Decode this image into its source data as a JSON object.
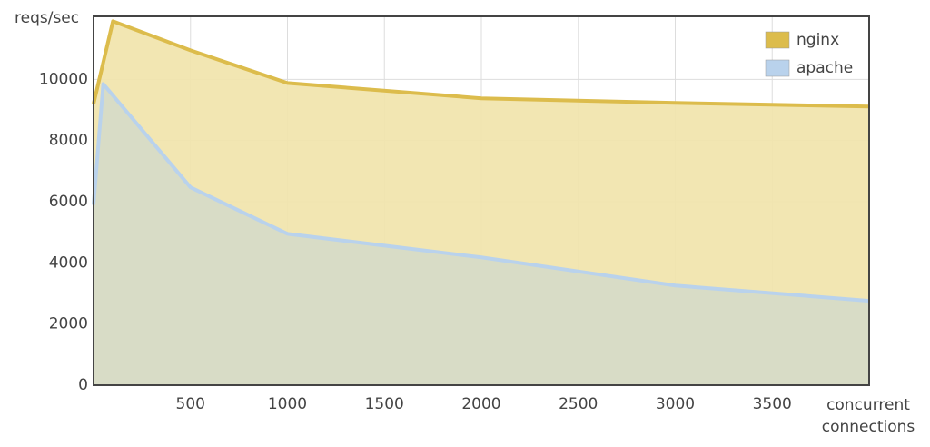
{
  "chart_data": {
    "type": "area",
    "ylabel": "reqs/sec",
    "xlabel": "concurrent connections",
    "xlim": [
      0,
      4000
    ],
    "xticks": [
      500,
      1000,
      1500,
      2000,
      2500,
      3000,
      3500
    ],
    "ylim": [
      0,
      12000
    ],
    "yticks": [
      0,
      2000,
      4000,
      6000,
      8000,
      10000
    ],
    "grid": true,
    "legend": "top-right",
    "series": [
      {
        "name": "nginx",
        "color": "#dcbc4c",
        "fill": "#f1e4ab",
        "x": [
          0,
          100,
          500,
          1000,
          2000,
          3000,
          4000
        ],
        "values": [
          9200,
          11900,
          10950,
          9880,
          9380,
          9230,
          9110
        ]
      },
      {
        "name": "apache",
        "color": "#b9d2ec",
        "fill": "#d6dbc8",
        "x": [
          0,
          50,
          500,
          1000,
          2000,
          3000,
          4000
        ],
        "values": [
          5900,
          9850,
          6470,
          4950,
          4180,
          3260,
          2760
        ]
      }
    ]
  }
}
